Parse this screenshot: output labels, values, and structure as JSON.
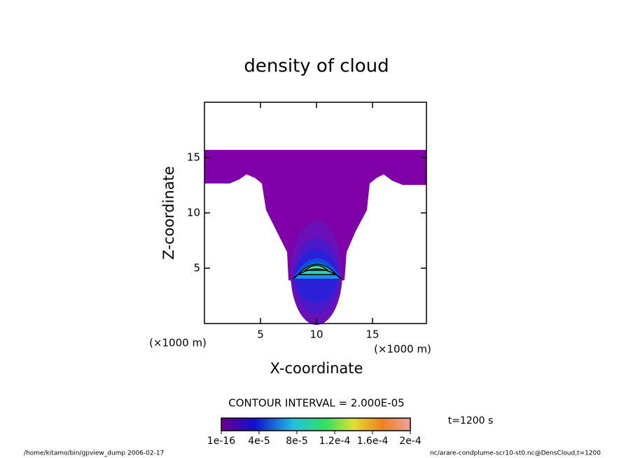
{
  "chart_data": {
    "type": "contour",
    "title": "density of cloud",
    "x_label": "X-coordinate",
    "y_label": "Z-coordinate",
    "x_unit_left": "(×1000 m)",
    "x_unit_right": "(×1000 m)",
    "xlim": [
      0,
      20
    ],
    "ylim": [
      0,
      20
    ],
    "xticks": [
      5,
      10,
      15
    ],
    "yticks": [
      5,
      10,
      15
    ],
    "contour_interval": "CONTOUR INTERVAL = 2.000E-05",
    "time_label": "t=1200 s",
    "clim": [
      1e-16,
      0.0002
    ],
    "colorbar_ticks": [
      {
        "value": 1e-16,
        "label": "1e-16"
      },
      {
        "value": 4e-05,
        "label": "4e-5"
      },
      {
        "value": 8e-05,
        "label": "8e-5"
      },
      {
        "value": 0.00012,
        "label": "1.2e-4"
      },
      {
        "value": 0.00016,
        "label": "1.6e-4"
      },
      {
        "value": 0.0002,
        "label": "2e-4"
      }
    ],
    "footer_left": "/home/kitamo/bin/gpview_dump  2006-02-17",
    "footer_right": "nc/arare-condplume-scr10-st0.nc@DensCloud,t=1200"
  }
}
